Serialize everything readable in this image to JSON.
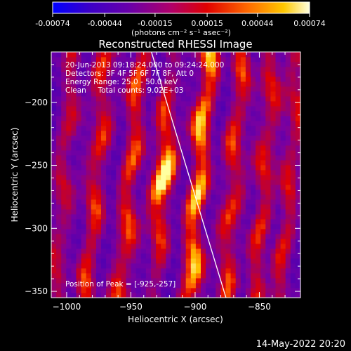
{
  "colorbar": {
    "tick_labels": [
      "-0.00074",
      "-0.00044",
      "-0.00015",
      "0.00015",
      "0.00044",
      "0.00074"
    ],
    "tick_values": [
      -0.00074,
      -0.00044,
      -0.00015,
      0.00015,
      0.00044,
      0.00074
    ],
    "range": [
      -0.00074,
      0.00074
    ],
    "unit_label": "(photons cm⁻² s⁻¹ asec⁻²)"
  },
  "chart_data": {
    "type": "heatmap",
    "title": "Reconstructed RHESSI Image",
    "xlabel": "Heliocentric X (arcsec)",
    "ylabel": "Heliocentric Y (arcsec)",
    "xlim": [
      -1012,
      -818
    ],
    "ylim": [
      -355,
      -160
    ],
    "x_ticks": [
      -1000,
      -950,
      -900,
      -850
    ],
    "x_tick_labels": [
      "−1000",
      "−950",
      "−900",
      "−850"
    ],
    "y_ticks": [
      -200,
      -250,
      -300,
      -350
    ],
    "y_tick_labels": [
      "−200",
      "−250",
      "−300",
      "−350"
    ],
    "annotations": [
      "20-Jun-2013 09:18:24.000 to 09:24:24.000",
      "Detectors: 3F 4F 5F 6F 7F 8F, Att 0",
      "Energy Range: 25.0 - 50.0 keV",
      "Clean     Total counts: 9.02E+03"
    ],
    "peak_label": "Position of Peak = [-925,-257]",
    "peak": [
      -925,
      -257
    ],
    "limb_line": [
      [
        -934,
        -160
      ],
      [
        -876,
        -355
      ]
    ],
    "stripes": [
      {
        "x": -1002,
        "amp": 0.35
      },
      {
        "x": -977,
        "amp": 0.48
      },
      {
        "x": -950,
        "amp": 0.55
      },
      {
        "x": -925,
        "amp": 1.0
      },
      {
        "x": -897,
        "amp": 0.8
      },
      {
        "x": -870,
        "amp": 0.5
      },
      {
        "x": -846,
        "amp": 0.45
      },
      {
        "x": -826,
        "amp": 0.4
      }
    ],
    "colormap": [
      "#0000ff",
      "#4a00b4",
      "#7a00a0",
      "#b0004a",
      "#e00000",
      "#ff6000",
      "#ffc000",
      "#ffffa0"
    ]
  },
  "footer": {
    "timestamp": "14-May-2022 20:20"
  }
}
